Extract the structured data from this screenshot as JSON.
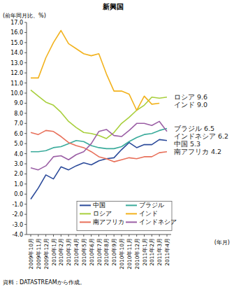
{
  "chart_data": {
    "type": "line",
    "title": "新興国",
    "y_label": "(前年同月比、%)",
    "x_label": "(年月)",
    "source": "資料：DATASTREAMから作成。",
    "categories": [
      "2009年10月",
      "2009年11月",
      "2009年12月",
      "2010年1月",
      "2010年2月",
      "2010年3月",
      "2010年4月",
      "2010年5月",
      "2010年6月",
      "2010年7月",
      "2010年8月",
      "2010年9月",
      "2010年10月",
      "2010年11月",
      "2010年12月",
      "2011年1月",
      "2011年2月",
      "2011年3月",
      "2011年4月"
    ],
    "series": [
      {
        "name": "中国",
        "color": "#2b4a9a",
        "values": [
          -0.5,
          0.6,
          1.9,
          1.5,
          2.7,
          2.4,
          2.8,
          3.1,
          2.9,
          3.3,
          3.5,
          3.6,
          4.4,
          5.1,
          4.6,
          4.9,
          4.9,
          5.4,
          5.3
        ]
      },
      {
        "name": "ブラジル",
        "color": "#3aab9b",
        "values": [
          4.2,
          4.2,
          4.3,
          4.6,
          4.7,
          5.0,
          5.3,
          5.2,
          4.8,
          4.6,
          4.5,
          4.5,
          4.7,
          5.2,
          5.6,
          5.9,
          6.0,
          6.3,
          6.5
        ]
      },
      {
        "name": "ロシア",
        "color": "#a8cf3c",
        "values": [
          10.3,
          9.7,
          9.1,
          8.8,
          8.1,
          7.2,
          6.6,
          6.1,
          6.0,
          5.8,
          5.5,
          6.1,
          7.0,
          7.6,
          8.3,
          8.8,
          9.6,
          9.5,
          9.6
        ]
      },
      {
        "name": "インド",
        "color": "#f2b21d",
        "values": [
          11.5,
          11.5,
          13.5,
          15.0,
          16.2,
          14.9,
          14.4,
          13.9,
          13.7,
          13.9,
          11.9,
          10.2,
          10.2,
          9.9,
          8.3,
          9.7,
          8.9,
          9.0,
          null
        ]
      },
      {
        "name": "南アフリカ",
        "color": "#e8705a",
        "values": [
          6.1,
          5.9,
          6.3,
          6.2,
          5.7,
          5.1,
          4.8,
          4.6,
          4.2,
          3.7,
          3.5,
          3.2,
          3.4,
          3.6,
          3.5,
          3.7,
          3.7,
          4.1,
          4.2
        ]
      },
      {
        "name": "インドネシア",
        "color": "#9b5fa5",
        "values": [
          2.6,
          2.4,
          2.8,
          3.7,
          3.8,
          3.4,
          3.9,
          4.2,
          5.0,
          6.2,
          6.4,
          5.8,
          5.7,
          6.3,
          7.0,
          7.0,
          6.8,
          7.2,
          6.2
        ]
      }
    ],
    "annotations": [
      "中国 5.3",
      "ブラジル 6.5",
      "ロシア 9.6",
      "インド 9.0",
      "南アフリカ 4.2",
      "インドネシア 6.2"
    ],
    "ylim": [
      -4,
      17
    ],
    "yticks": [
      {
        "value": -4,
        "label": "-4.0"
      },
      {
        "value": -3,
        "label": "-3.0"
      },
      {
        "value": -2,
        "label": "-2.0"
      },
      {
        "value": -1,
        "label": "-1.0"
      },
      {
        "value": 0,
        "label": "0.0"
      },
      {
        "value": 1,
        "label": "1.0"
      },
      {
        "value": 2,
        "label": "2.0"
      },
      {
        "value": 3,
        "label": "3.0"
      },
      {
        "value": 4,
        "label": "4.0"
      },
      {
        "value": 5,
        "label": "5.0"
      },
      {
        "value": 6,
        "label": "6.0"
      },
      {
        "value": 7,
        "label": "7.0"
      },
      {
        "value": 8,
        "label": "8.0"
      },
      {
        "value": 9,
        "label": "9.0"
      },
      {
        "value": 10,
        "label": "10.0"
      },
      {
        "value": 11,
        "label": "11.0"
      },
      {
        "value": 12,
        "label": "12.0"
      },
      {
        "value": 13,
        "label": "13.0"
      },
      {
        "value": 14,
        "label": "14.0"
      },
      {
        "value": 15,
        "label": "15.0"
      },
      {
        "value": 16,
        "label": "16.0"
      },
      {
        "value": 17,
        "label": "17.0"
      }
    ],
    "grid": false,
    "legend": "lower right"
  }
}
